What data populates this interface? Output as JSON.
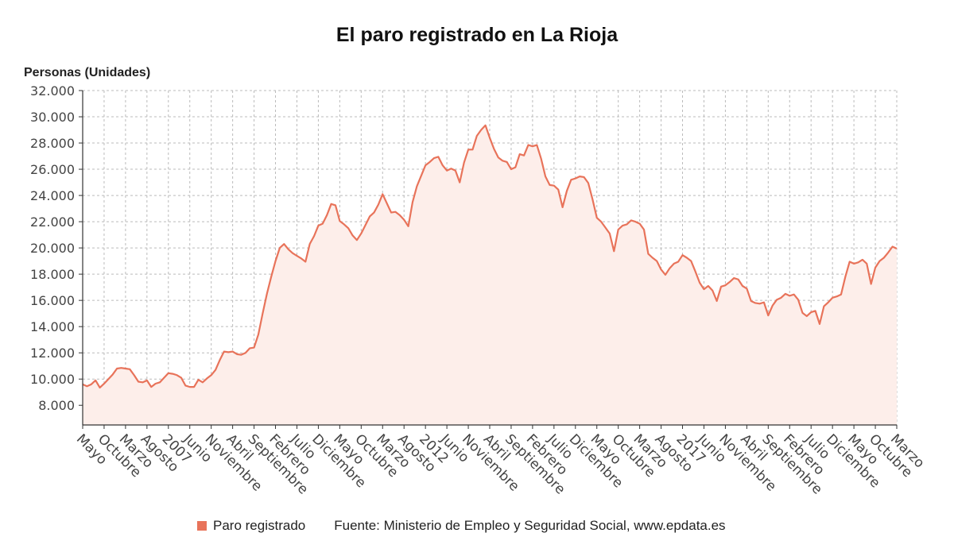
{
  "colors": {
    "line": "#E8735A",
    "fill": "#FDEEEA",
    "grid": "#BBBBBB"
  },
  "title": "El paro registrado en La Rioja",
  "legend": {
    "series_name": "Paro registrado",
    "source": "Fuente: Ministerio de Empleo y Seguridad Social, www.epdata.es"
  },
  "chart_data": {
    "type": "area",
    "title": "El paro registrado en La Rioja",
    "ylabel": "Personas (Unidades)",
    "ylim": [
      6500,
      32000
    ],
    "yticks": [
      8000,
      10000,
      12000,
      14000,
      16000,
      18000,
      20000,
      22000,
      24000,
      26000,
      28000,
      30000,
      32000
    ],
    "ytick_labels": [
      "8.000",
      "10.000",
      "12.000",
      "14.000",
      "16.000",
      "18.000",
      "20.000",
      "22.000",
      "24.000",
      "26.000",
      "28.000",
      "30.000",
      "32.000"
    ],
    "x_start": "2005-05",
    "x_end": "2020-03",
    "xtick_labels": [
      "Mayo",
      "Octubre",
      "Marzo",
      "Agosto",
      "2007",
      "Junio",
      "Noviembre",
      "Abril",
      "Septiembre",
      "Febrero",
      "Julio",
      "Diciembre",
      "Mayo",
      "Octubre",
      "Marzo",
      "Agosto",
      "2012",
      "Junio",
      "Noviembre",
      "Abril",
      "Septiembre",
      "Febrero",
      "Julio",
      "Diciembre",
      "Mayo",
      "Octubre",
      "Marzo",
      "Agosto",
      "2017",
      "Junio",
      "Noviembre",
      "Abril",
      "Septiembre",
      "Febrero",
      "Julio",
      "Diciembre",
      "Mayo",
      "Octubre",
      "Marzo"
    ],
    "grid": true,
    "legend_position": "bottom",
    "series": [
      {
        "name": "Paro registrado",
        "values": [
          9600,
          9450,
          9600,
          9900,
          9350,
          9650,
          10000,
          10350,
          10800,
          10850,
          10800,
          10750,
          10300,
          9800,
          9750,
          9900,
          9400,
          9650,
          9750,
          10100,
          10450,
          10400,
          10300,
          10100,
          9500,
          9400,
          9400,
          9950,
          9750,
          10050,
          10300,
          10700,
          11450,
          12100,
          12050,
          12100,
          11900,
          11850,
          12000,
          12350,
          12400,
          13400,
          15000,
          16500,
          17800,
          19000,
          20000,
          20300,
          19900,
          19600,
          19400,
          19200,
          18950,
          20300,
          20900,
          21700,
          21850,
          22500,
          23350,
          23250,
          22050,
          21800,
          21500,
          20950,
          20600,
          21100,
          21750,
          22400,
          22700,
          23300,
          24100,
          23400,
          22700,
          22750,
          22500,
          22150,
          21650,
          23500,
          24700,
          25500,
          26300,
          26550,
          26850,
          26950,
          26300,
          25900,
          26050,
          25900,
          25000,
          26500,
          27500,
          27500,
          28550,
          29000,
          29350,
          28400,
          27550,
          26900,
          26650,
          26550,
          26000,
          26150,
          27150,
          27050,
          27850,
          27750,
          27850,
          26800,
          25450,
          24800,
          24750,
          24450,
          23100,
          24350,
          25200,
          25300,
          25450,
          25400,
          24950,
          23700,
          22300,
          22000,
          21550,
          21100,
          19750,
          21400,
          21700,
          21800,
          22100,
          22000,
          21850,
          21400,
          19550,
          19250,
          19000,
          18350,
          17950,
          18450,
          18800,
          18950,
          19450,
          19250,
          19000,
          18200,
          17350,
          16850,
          17100,
          16750,
          15950,
          17050,
          17150,
          17400,
          17700,
          17600,
          17100,
          16900,
          15950,
          15800,
          15750,
          15850,
          14850,
          15600,
          16050,
          16200,
          16500,
          16350,
          16450,
          16050,
          15050,
          14800,
          15100,
          15200,
          14200,
          15550,
          15850,
          16200,
          16300,
          16450,
          17800,
          18950,
          18800,
          18900,
          19100,
          18800,
          17250,
          18500,
          19000,
          19250,
          19650,
          20100,
          19950
        ]
      }
    ]
  }
}
